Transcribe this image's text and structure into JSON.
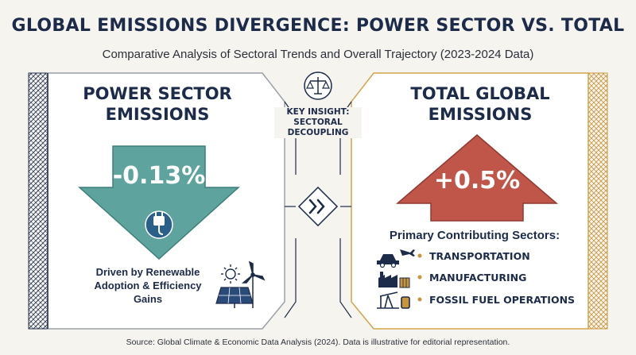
{
  "header": {
    "title": "GLOBAL EMISSIONS DIVERGENCE: POWER SECTOR VS. TOTAL",
    "subtitle": "Comparative Analysis of Sectoral Trends and Overall Trajectory (2023-2024 Data)"
  },
  "left_panel": {
    "title_line1": "POWER SECTOR",
    "title_line2": "EMISSIONS",
    "value": "-0.13%",
    "direction": "down",
    "color": "#5ea39e",
    "driver_line1": "Driven by Renewable",
    "driver_line2": "Adoption & Efficiency",
    "driver_line3": "Gains",
    "icons": [
      "power-plug-icon",
      "sun-icon",
      "solar-panel-icon",
      "wind-turbine-icon"
    ]
  },
  "center": {
    "insight_line1": "KEY INSIGHT:",
    "insight_line2": "SECTORAL",
    "insight_line3": "DECOUPLING",
    "icons": [
      "balance-scale-icon",
      "double-chevron-icon"
    ]
  },
  "right_panel": {
    "title_line1": "TOTAL GLOBAL",
    "title_line2": "EMISSIONS",
    "value": "+0.5%",
    "direction": "up",
    "color": "#c0554a",
    "contrib_heading": "Primary Contributing Sectors:",
    "sectors": [
      {
        "label": "TRANSPORTATION",
        "icon": "car-plane-icon"
      },
      {
        "label": "MANUFACTURING",
        "icon": "factory-icon"
      },
      {
        "label": "FOSSIL FUEL OPERATIONS",
        "icon": "oil-pump-icon"
      }
    ]
  },
  "colors": {
    "navy": "#1d2b4a",
    "frame": "#b8bcc4",
    "gold": "#d0a54a",
    "background": "#f6f4ef"
  },
  "footer": {
    "source": "Source: Global Climate & Economic Data Analysis (2024). Data is illustrative for editorial representation."
  }
}
